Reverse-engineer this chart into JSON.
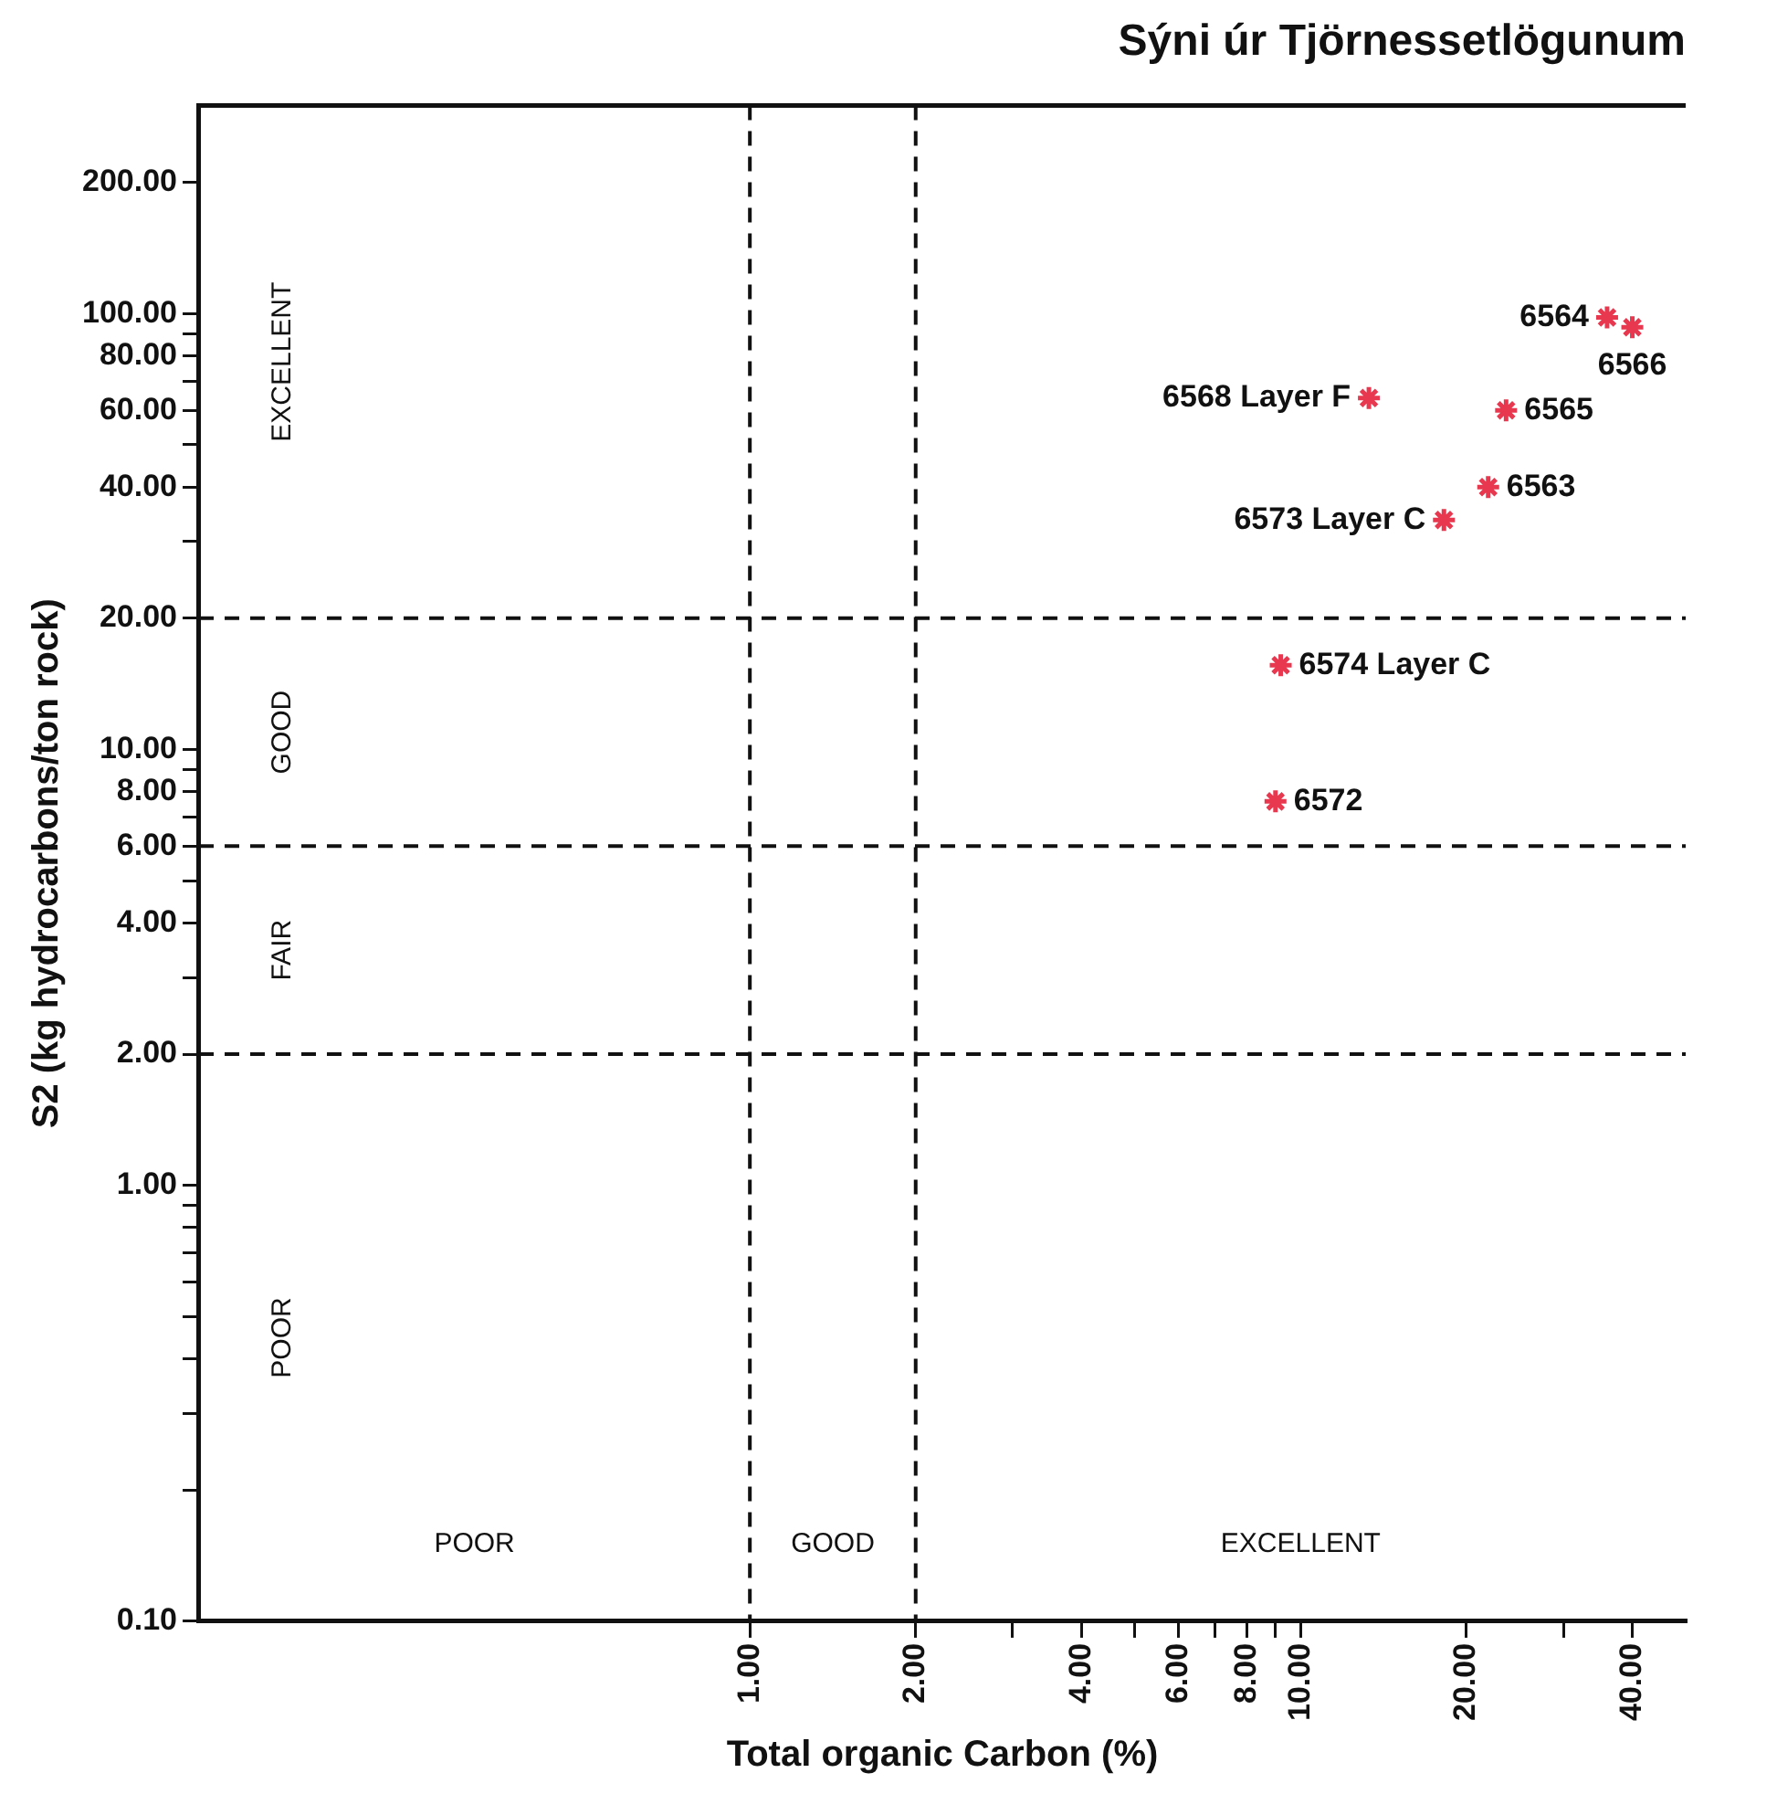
{
  "chart_data": {
    "type": "scatter",
    "title": "Sýni úr Tjörnessetlögunum",
    "xlabel": "Total organic Carbon (%)",
    "ylabel": "S2 (kg hydrocarbons/ton rock)",
    "log": "xy",
    "grid": false,
    "legend": false,
    "marker": "cross",
    "xlim": [
      0.1,
      50
    ],
    "ylim": [
      0.1,
      300
    ],
    "xticks": [
      {
        "value": 1,
        "label": "1.00"
      },
      {
        "value": 2,
        "label": "2.00"
      },
      {
        "value": 3,
        "label": null
      },
      {
        "value": 4,
        "label": "4.00"
      },
      {
        "value": 5,
        "label": null
      },
      {
        "value": 6,
        "label": "6.00"
      },
      {
        "value": 7,
        "label": null
      },
      {
        "value": 8,
        "label": "8.00"
      },
      {
        "value": 9,
        "label": null
      },
      {
        "value": 10,
        "label": "10.00"
      },
      {
        "value": 20,
        "label": "20.00"
      },
      {
        "value": 30,
        "label": null
      },
      {
        "value": 40,
        "label": "40.00"
      }
    ],
    "yticks": [
      {
        "value": 0.1,
        "label": "0.10"
      },
      {
        "value": 0.2,
        "label": null
      },
      {
        "value": 0.3,
        "label": null
      },
      {
        "value": 0.4,
        "label": null
      },
      {
        "value": 0.5,
        "label": null
      },
      {
        "value": 0.6,
        "label": null
      },
      {
        "value": 0.7,
        "label": null
      },
      {
        "value": 0.8,
        "label": null
      },
      {
        "value": 0.9,
        "label": null
      },
      {
        "value": 1,
        "label": "1.00"
      },
      {
        "value": 2,
        "label": "2.00"
      },
      {
        "value": 3,
        "label": null
      },
      {
        "value": 4,
        "label": "4.00"
      },
      {
        "value": 5,
        "label": null
      },
      {
        "value": 6,
        "label": "6.00"
      },
      {
        "value": 7,
        "label": null
      },
      {
        "value": 8,
        "label": "8.00"
      },
      {
        "value": 9,
        "label": null
      },
      {
        "value": 10,
        "label": "10.00"
      },
      {
        "value": 20,
        "label": "20.00"
      },
      {
        "value": 30,
        "label": null
      },
      {
        "value": 40,
        "label": "40.00"
      },
      {
        "value": 50,
        "label": null
      },
      {
        "value": 60,
        "label": "60.00"
      },
      {
        "value": 70,
        "label": null
      },
      {
        "value": 80,
        "label": "80.00"
      },
      {
        "value": 90,
        "label": null
      },
      {
        "value": 100,
        "label": "100.00"
      },
      {
        "value": 200,
        "label": "200.00"
      }
    ],
    "series": [
      {
        "color": "#e8384f",
        "x": [
          36,
          40,
          13.3,
          23.6,
          21.9,
          18.2,
          9.2,
          9.0
        ],
        "values": [
          98,
          93,
          64,
          60,
          40,
          33.6,
          15.6,
          7.6
        ]
      }
    ],
    "annotations": [
      {
        "text": "6564",
        "x": 36,
        "y": 98
      },
      {
        "text": "6566",
        "x": 40,
        "y": 93
      },
      {
        "text": "6568 Layer F",
        "x": 13.3,
        "y": 64
      },
      {
        "text": "6565",
        "x": 23.6,
        "y": 60
      },
      {
        "text": "6563",
        "x": 21.9,
        "y": 40
      },
      {
        "text": "6573 Layer C",
        "x": 18.2,
        "y": 33.6
      },
      {
        "text": "6574 Layer C",
        "x": 9.2,
        "y": 15.6
      },
      {
        "text": "6572",
        "x": 9.0,
        "y": 7.6
      },
      "EXCELLENT",
      "GOOD",
      "FAIR",
      "POOR",
      "POOR",
      "GOOD",
      "EXCELLENT"
    ],
    "ref_lines": [
      {
        "axis": "x",
        "value": 1,
        "line_style": "dashed"
      },
      {
        "axis": "x",
        "value": 2,
        "line_style": "dashed"
      },
      {
        "axis": "y",
        "value": 2,
        "line_style": "dashed"
      },
      {
        "axis": "y",
        "value": 6,
        "line_style": "dashed"
      },
      {
        "axis": "y",
        "value": 20,
        "line_style": "dashed"
      }
    ]
  }
}
